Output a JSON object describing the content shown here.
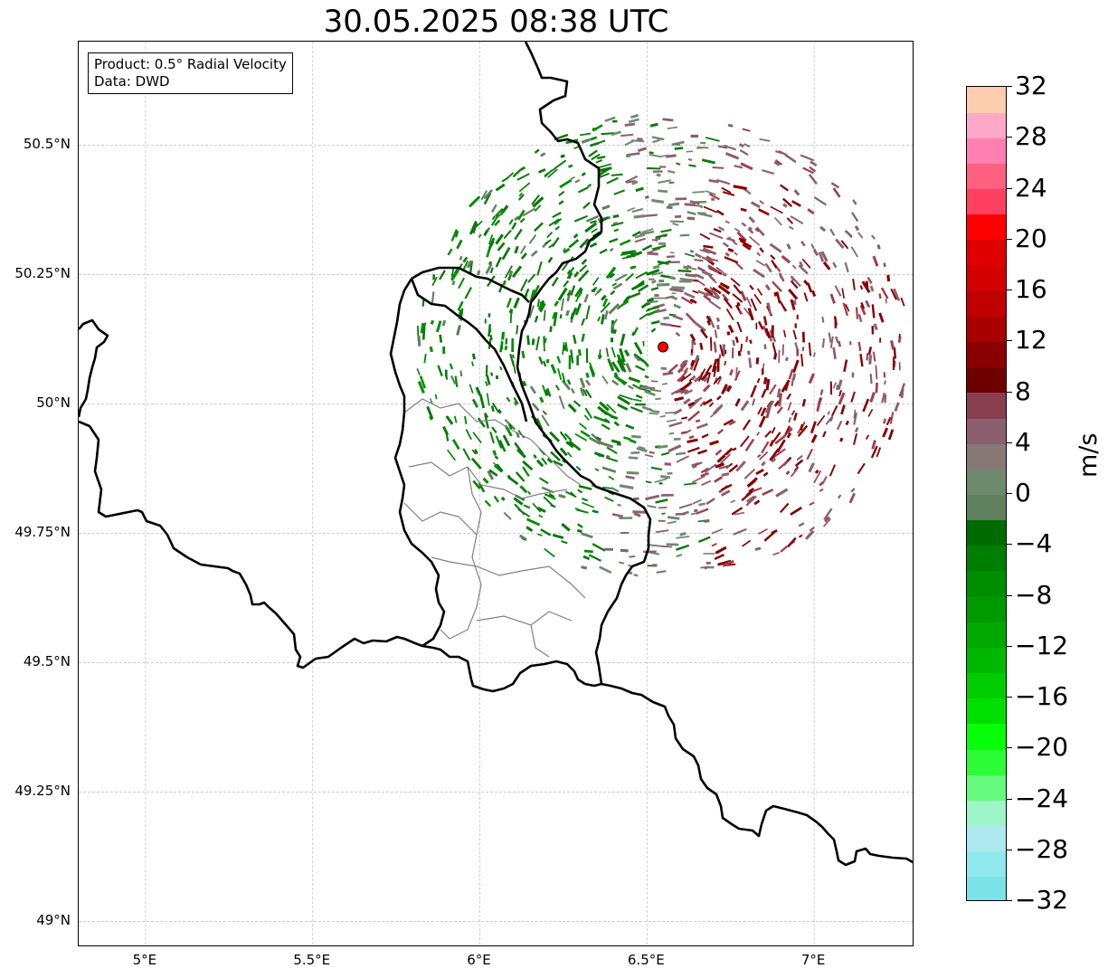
{
  "title": "30.05.2025 08:38 UTC",
  "info": {
    "product": "Product: 0.5° Radial Velocity",
    "data": "Data: DWD"
  },
  "map": {
    "lon_range": [
      4.8,
      7.3
    ],
    "lat_range": [
      48.95,
      50.7
    ],
    "lon_ticks": [
      {
        "value": 5.0,
        "label": "5°E"
      },
      {
        "value": 5.5,
        "label": "5.5°E"
      },
      {
        "value": 6.0,
        "label": "6°E"
      },
      {
        "value": 6.5,
        "label": "6.5°E"
      },
      {
        "value": 7.0,
        "label": "7°E"
      }
    ],
    "lat_ticks": [
      {
        "value": 50.5,
        "label": "50.5°N"
      },
      {
        "value": 50.25,
        "label": "50.25°N"
      },
      {
        "value": 50.0,
        "label": "50°N"
      },
      {
        "value": 49.75,
        "label": "49.75°N"
      },
      {
        "value": 49.5,
        "label": "49.5°N"
      },
      {
        "value": 49.25,
        "label": "49.25°N"
      },
      {
        "value": 49.0,
        "label": "49°N"
      }
    ],
    "radar_site": {
      "lon": 6.548,
      "lat": 50.11,
      "color": "#ff0000"
    },
    "gridlines": true
  },
  "colorbar": {
    "unit": "m/s",
    "range": [
      -32,
      32
    ],
    "step": 2,
    "colors": [
      "#7ae3e7",
      "#8ee8ec",
      "#ade9ee",
      "#9df5c8",
      "#66f97f",
      "#2ffc39",
      "#07ff07",
      "#00df00",
      "#00cc00",
      "#00b800",
      "#00a800",
      "#009a00",
      "#008e00",
      "#007e00",
      "#006c00",
      "#608060",
      "#6e8a6e",
      "#887878",
      "#8a6070",
      "#884050",
      "#6e0000",
      "#8a0000",
      "#a80000",
      "#c00000",
      "#d20000",
      "#e00000",
      "#ff0000",
      "#ff4060",
      "#ff6080",
      "#ff80b0",
      "#ffa8c8",
      "#ffcdb0"
    ],
    "ticks": [
      {
        "value": 32,
        "label": "32"
      },
      {
        "value": 28,
        "label": "28"
      },
      {
        "value": 24,
        "label": "24"
      },
      {
        "value": 20,
        "label": "20"
      },
      {
        "value": 16,
        "label": "16"
      },
      {
        "value": 12,
        "label": "12"
      },
      {
        "value": 8,
        "label": "8"
      },
      {
        "value": 4,
        "label": "4"
      },
      {
        "value": 0,
        "label": "0"
      },
      {
        "value": -4,
        "label": "−4"
      },
      {
        "value": -8,
        "label": "−8"
      },
      {
        "value": -12,
        "label": "−12"
      },
      {
        "value": -16,
        "label": "−16"
      },
      {
        "value": -20,
        "label": "−20"
      },
      {
        "value": -24,
        "label": "−24"
      },
      {
        "value": -28,
        "label": "−28"
      },
      {
        "value": -32,
        "label": "−32"
      }
    ]
  }
}
